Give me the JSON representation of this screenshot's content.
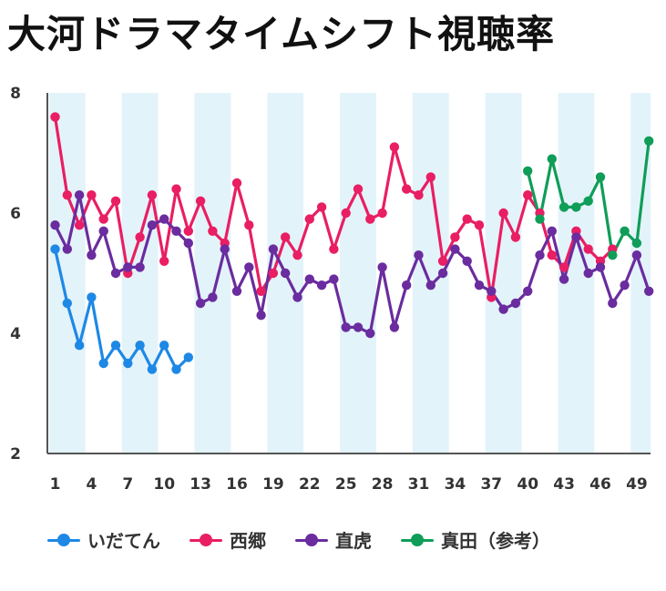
{
  "chart_data": {
    "type": "line",
    "title": "大河ドラマタイムシフト視聴率",
    "xlabel": "",
    "ylabel": "",
    "xlim": [
      1,
      50
    ],
    "ylim": [
      2,
      8
    ],
    "yticks": [
      2,
      4,
      6,
      8
    ],
    "xticks": [
      1,
      4,
      7,
      10,
      13,
      16,
      19,
      22,
      25,
      28,
      31,
      34,
      37,
      40,
      43,
      46,
      49
    ],
    "bands": [
      [
        1,
        3
      ],
      [
        7,
        9
      ],
      [
        13,
        15
      ],
      [
        19,
        21
      ],
      [
        25,
        27
      ],
      [
        31,
        33
      ],
      [
        37,
        39
      ],
      [
        43,
        45
      ],
      [
        49,
        50
      ]
    ],
    "band_color": "#e3f3fa",
    "legend_position": "bottom",
    "series": [
      {
        "name": "いだてん",
        "color": "#1e88e5",
        "x": [
          1,
          2,
          3,
          4,
          5,
          6,
          7,
          8,
          9,
          10,
          11,
          12
        ],
        "values": [
          5.4,
          4.5,
          3.8,
          4.6,
          3.5,
          3.8,
          3.5,
          3.8,
          3.4,
          3.8,
          3.4,
          3.6
        ]
      },
      {
        "name": "西郷",
        "color": "#e91e63",
        "x": [
          1,
          2,
          3,
          4,
          5,
          6,
          7,
          8,
          9,
          10,
          11,
          12,
          13,
          14,
          15,
          16,
          17,
          18,
          19,
          20,
          21,
          22,
          23,
          24,
          25,
          26,
          27,
          28,
          29,
          30,
          31,
          32,
          33,
          34,
          35,
          36,
          37,
          38,
          39,
          40,
          41,
          42,
          43,
          44,
          45,
          46,
          47
        ],
        "values": [
          7.6,
          6.3,
          5.8,
          6.3,
          5.9,
          6.2,
          5.0,
          5.6,
          6.3,
          5.2,
          6.4,
          5.7,
          6.2,
          5.7,
          5.5,
          6.5,
          5.8,
          4.7,
          5.0,
          5.6,
          5.3,
          5.9,
          6.1,
          5.4,
          6.0,
          6.4,
          5.9,
          6.0,
          7.1,
          6.4,
          6.3,
          6.6,
          5.2,
          5.6,
          5.9,
          5.8,
          4.6,
          6.0,
          5.6,
          6.3,
          6.0,
          5.3,
          5.1,
          5.7,
          5.4,
          5.2,
          5.4
        ]
      },
      {
        "name": "直虎",
        "color": "#6a2c9e",
        "x": [
          1,
          2,
          3,
          4,
          5,
          6,
          7,
          8,
          9,
          10,
          11,
          12,
          13,
          14,
          15,
          16,
          17,
          18,
          19,
          20,
          21,
          22,
          23,
          24,
          25,
          26,
          27,
          28,
          29,
          30,
          31,
          32,
          33,
          34,
          35,
          36,
          37,
          38,
          39,
          40,
          41,
          42,
          43,
          44,
          45,
          46,
          47,
          48,
          49,
          50
        ],
        "values": [
          5.8,
          5.4,
          6.3,
          5.3,
          5.7,
          5.0,
          5.1,
          5.1,
          5.8,
          5.9,
          5.7,
          5.5,
          4.5,
          4.6,
          5.4,
          4.7,
          5.1,
          4.3,
          5.4,
          5.0,
          4.6,
          4.9,
          4.8,
          4.9,
          4.1,
          4.1,
          4.0,
          5.1,
          4.1,
          4.8,
          5.3,
          4.8,
          5.0,
          5.4,
          5.2,
          4.8,
          4.7,
          4.4,
          4.5,
          4.7,
          5.3,
          5.7,
          4.9,
          5.6,
          5.0,
          5.1,
          4.5,
          4.8,
          5.3,
          4.7
        ]
      },
      {
        "name": "真田（参考）",
        "color": "#0f9d58",
        "x": [
          40,
          41,
          42,
          43,
          44,
          45,
          46,
          47,
          48,
          49,
          50
        ],
        "values": [
          6.7,
          5.9,
          6.9,
          6.1,
          6.1,
          6.2,
          6.6,
          5.3,
          5.7,
          5.5,
          7.2
        ]
      }
    ]
  }
}
